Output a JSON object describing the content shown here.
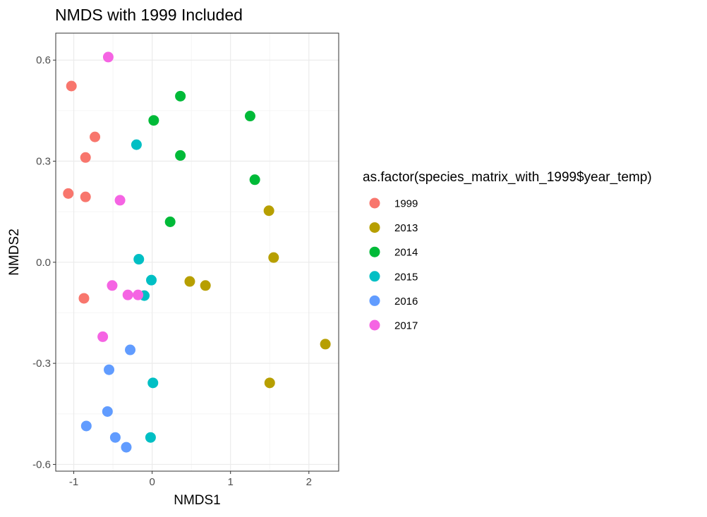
{
  "chart_data": {
    "type": "scatter",
    "title": "NMDS with 1999 Included",
    "xlabel": "NMDS1",
    "ylabel": "NMDS2",
    "xlim": [
      -1.23,
      2.38
    ],
    "ylim": [
      -0.62,
      0.68
    ],
    "xticks": [
      -1,
      0,
      1,
      2
    ],
    "xtick_labels": [
      "-1",
      "0",
      "1",
      "2"
    ],
    "yticks": [
      -0.6,
      -0.3,
      0.0,
      0.3,
      0.6
    ],
    "ytick_labels": [
      "-0.6",
      "-0.3",
      "0.0",
      "0.3",
      "0.6"
    ],
    "grid": true,
    "legend": {
      "title": "as.factor(species_matrix_with_1999$year_temp)",
      "position": "right"
    },
    "series": [
      {
        "name": "1999",
        "color": "#F8766D",
        "points": [
          [
            -1.03,
            0.523
          ],
          [
            -0.73,
            0.372
          ],
          [
            -0.85,
            0.311
          ],
          [
            -1.07,
            0.204
          ],
          [
            -0.85,
            0.194
          ],
          [
            -0.87,
            -0.107
          ]
        ]
      },
      {
        "name": "2013",
        "color": "#B79F00",
        "points": [
          [
            1.49,
            0.153
          ],
          [
            1.55,
            0.014
          ],
          [
            0.48,
            -0.057
          ],
          [
            0.68,
            -0.069
          ],
          [
            2.21,
            -0.243
          ],
          [
            1.5,
            -0.358
          ]
        ]
      },
      {
        "name": "2014",
        "color": "#00BA38",
        "points": [
          [
            0.36,
            0.493
          ],
          [
            1.25,
            0.434
          ],
          [
            0.02,
            0.421
          ],
          [
            0.36,
            0.317
          ],
          [
            1.31,
            0.245
          ],
          [
            0.23,
            0.12
          ]
        ]
      },
      {
        "name": "2015",
        "color": "#00BFC4",
        "points": [
          [
            -0.2,
            0.349
          ],
          [
            -0.17,
            0.009
          ],
          [
            -0.01,
            -0.053
          ],
          [
            -0.1,
            -0.099
          ],
          [
            0.01,
            -0.358
          ],
          [
            -0.02,
            -0.52
          ]
        ]
      },
      {
        "name": "2016",
        "color": "#619CFF",
        "points": [
          [
            -0.28,
            -0.26
          ],
          [
            -0.55,
            -0.319
          ],
          [
            -0.57,
            -0.443
          ],
          [
            -0.84,
            -0.486
          ],
          [
            -0.47,
            -0.52
          ],
          [
            -0.33,
            -0.549
          ]
        ]
      },
      {
        "name": "2017",
        "color": "#F564E3",
        "points": [
          [
            -0.56,
            0.609
          ],
          [
            -0.41,
            0.184
          ],
          [
            -0.51,
            -0.069
          ],
          [
            -0.31,
            -0.097
          ],
          [
            -0.18,
            -0.097
          ],
          [
            -0.63,
            -0.221
          ]
        ]
      }
    ]
  }
}
